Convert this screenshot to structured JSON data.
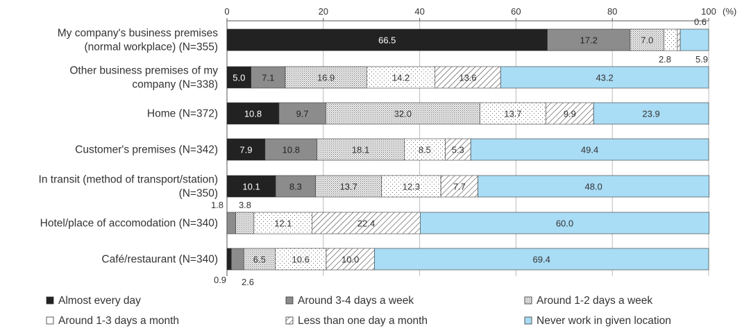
{
  "chart_data": {
    "type": "bar",
    "orientation": "horizontal",
    "stacked": true,
    "unit_label": "(%)",
    "xlim": [
      0,
      100
    ],
    "ticks": [
      "0",
      "20",
      "40",
      "60",
      "80",
      "100"
    ],
    "categories": [
      [
        "My company's business premises",
        "(normal workplace) (N=355)"
      ],
      [
        "Other business premises of my",
        "company (N=338)"
      ],
      [
        "Home (N=372)"
      ],
      [
        "Customer's premises (N=342)"
      ],
      [
        "In transit (method of transport/station)",
        "(N=350)"
      ],
      [
        "Hotel/place of accomodation (N=340)"
      ],
      [
        "Café/restaurant (N=340)"
      ]
    ],
    "series": [
      {
        "name": "Almost every day",
        "values": [
          66.5,
          5.0,
          10.8,
          7.9,
          10.1,
          0.0,
          0.9
        ],
        "labels": [
          "66.5",
          "5.0",
          "10.8",
          "7.9",
          "10.1",
          "",
          ""
        ]
      },
      {
        "name": "Around 3-4 days a week",
        "values": [
          17.2,
          7.1,
          9.7,
          10.8,
          8.3,
          1.8,
          2.6
        ],
        "labels": [
          "17.2",
          "7.1",
          "9.7",
          "10.8",
          "8.3",
          "",
          ""
        ]
      },
      {
        "name": "Around 1-2 days a week",
        "values": [
          7.0,
          16.9,
          32.0,
          18.1,
          13.7,
          3.8,
          6.5
        ],
        "labels": [
          "7.0",
          "16.9",
          "32.0",
          "18.1",
          "13.7",
          "",
          "6.5"
        ]
      },
      {
        "name": "Around 1-3 days a month",
        "values": [
          2.8,
          14.2,
          13.7,
          8.5,
          12.3,
          12.1,
          10.6
        ],
        "labels": [
          "",
          "14.2",
          "13.7",
          "8.5",
          "12.3",
          "12.1",
          "10.6"
        ]
      },
      {
        "name": "Less than one day a month",
        "values": [
          0.6,
          13.6,
          9.9,
          5.3,
          7.7,
          22.4,
          10.0
        ],
        "labels": [
          "",
          "13.6",
          "9.9",
          "5.3",
          "7.7",
          "22.4",
          "10.0"
        ]
      },
      {
        "name": "Never work in given location",
        "values": [
          5.9,
          43.2,
          23.9,
          49.4,
          48.0,
          60.0,
          69.4
        ],
        "labels": [
          "",
          "43.2",
          "23.9",
          "49.4",
          "48.0",
          "60.0",
          "69.4"
        ]
      }
    ],
    "outside_labels": [
      {
        "row": 0,
        "text": "0.6",
        "pos": "above-right"
      },
      {
        "row": 0,
        "text": "2.8",
        "pos": "below"
      },
      {
        "row": 0,
        "text": "5.9",
        "pos": "below-right"
      },
      {
        "row": 5,
        "text": "1.8",
        "pos": "above-left"
      },
      {
        "row": 5,
        "text": "3.8",
        "pos": "above"
      },
      {
        "row": 6,
        "text": "0.9",
        "pos": "below-left"
      },
      {
        "row": 6,
        "text": "2.6",
        "pos": "below"
      }
    ],
    "legend_position": "bottom",
    "colors": {
      "almost_every_day": "#222222",
      "three_four_days": "#8c8c8c",
      "one_two_days": "#f2f2f2",
      "one_three_month": "#ffffff",
      "less_than_one": "#ffffff",
      "never": "#a9dcf5",
      "axis": "#555555",
      "grid": "#bbbbbb",
      "text": "#333333"
    }
  }
}
